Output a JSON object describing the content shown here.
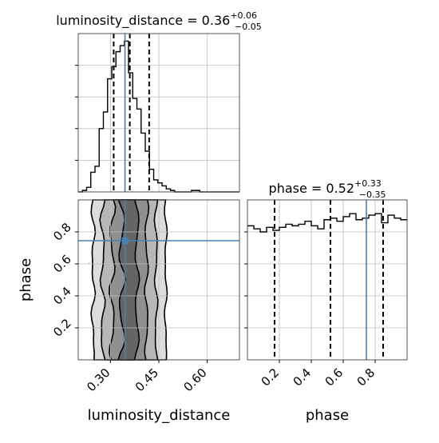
{
  "chart_data": {
    "type": "corner",
    "parameters": [
      "luminosity_distance",
      "phase"
    ],
    "truth": {
      "luminosity_distance": 0.345,
      "phase": 0.745
    },
    "panels": [
      {
        "id": "hist_luminosity_distance",
        "type": "histogram",
        "title": {
          "main": "luminosity_distance = 0.36",
          "sup": "+0.06",
          "sub": "−0.05"
        },
        "x_range": [
          0.2,
          0.7
        ],
        "bins_x": [
          0.2,
          0.213,
          0.226,
          0.239,
          0.252,
          0.265,
          0.278,
          0.291,
          0.304,
          0.317,
          0.33,
          0.343,
          0.356,
          0.369,
          0.382,
          0.395,
          0.408,
          0.421,
          0.434,
          0.447,
          0.46,
          0.473,
          0.486,
          0.499,
          0.512,
          0.525,
          0.538,
          0.551,
          0.564,
          0.577,
          0.59,
          0.603,
          0.616,
          0.629,
          0.642,
          0.655,
          0.668,
          0.681,
          0.7
        ],
        "counts": [
          0,
          0.01,
          0.03,
          0.13,
          0.17,
          0.42,
          0.53,
          0.75,
          0.83,
          0.93,
          0.97,
          1.0,
          0.79,
          0.62,
          0.55,
          0.39,
          0.27,
          0.15,
          0.08,
          0.06,
          0.04,
          0.02,
          0.01,
          0,
          0,
          0,
          0,
          0.01,
          0.01,
          0,
          0,
          0,
          0,
          0,
          0,
          0,
          0,
          0
        ],
        "y_max": 1.05,
        "quantiles": [
          0.31,
          0.36,
          0.42
        ]
      },
      {
        "id": "hist_phase",
        "type": "histogram",
        "title": {
          "main": "phase = 0.52",
          "sup": "+0.33",
          "sub": "−0.35"
        },
        "x_range": [
          0.0,
          1.0
        ],
        "bins_x": [
          0.0,
          0.04,
          0.08,
          0.12,
          0.16,
          0.2,
          0.24,
          0.28,
          0.32,
          0.36,
          0.4,
          0.44,
          0.48,
          0.52,
          0.56,
          0.6,
          0.64,
          0.68,
          0.72,
          0.76,
          0.8,
          0.84,
          0.88,
          0.92,
          0.96,
          1.0
        ],
        "counts": [
          0.88,
          0.86,
          0.84,
          0.87,
          0.85,
          0.87,
          0.89,
          0.88,
          0.89,
          0.91,
          0.88,
          0.86,
          0.92,
          0.93,
          0.91,
          0.94,
          0.96,
          0.92,
          0.93,
          0.95,
          0.96,
          0.9,
          0.95,
          0.93,
          0.92
        ],
        "y_max": 1.05,
        "quantiles": [
          0.17,
          0.52,
          0.85
        ]
      },
      {
        "id": "scatter_ld_phase",
        "type": "2d-density",
        "x_range": [
          0.2,
          0.7
        ],
        "y_range": [
          0.0,
          1.0
        ],
        "x_center": 0.36,
        "contour_levels": 4
      }
    ],
    "x_ticks_ld": [
      "0.30",
      "0.45",
      "0.60"
    ],
    "x_tick_values_ld": [
      0.3,
      0.45,
      0.6
    ],
    "y_ticks_phase": [
      "0.2",
      "0.4",
      "0.6",
      "0.8"
    ],
    "y_tick_values_phase": [
      0.2,
      0.4,
      0.6,
      0.8
    ],
    "x_ticks_phase": [
      "0.2",
      "0.4",
      "0.6",
      "0.8"
    ],
    "x_tick_values_phase": [
      0.2,
      0.4,
      0.6,
      0.8
    ],
    "xlabel_left": "luminosity_distance",
    "xlabel_right": "phase",
    "ylabel_bottom": "phase",
    "colors": {
      "truth": "#4682b4",
      "line": "#000000",
      "grid": "#bdbdbd",
      "density": "#808080"
    },
    "grid": true
  }
}
